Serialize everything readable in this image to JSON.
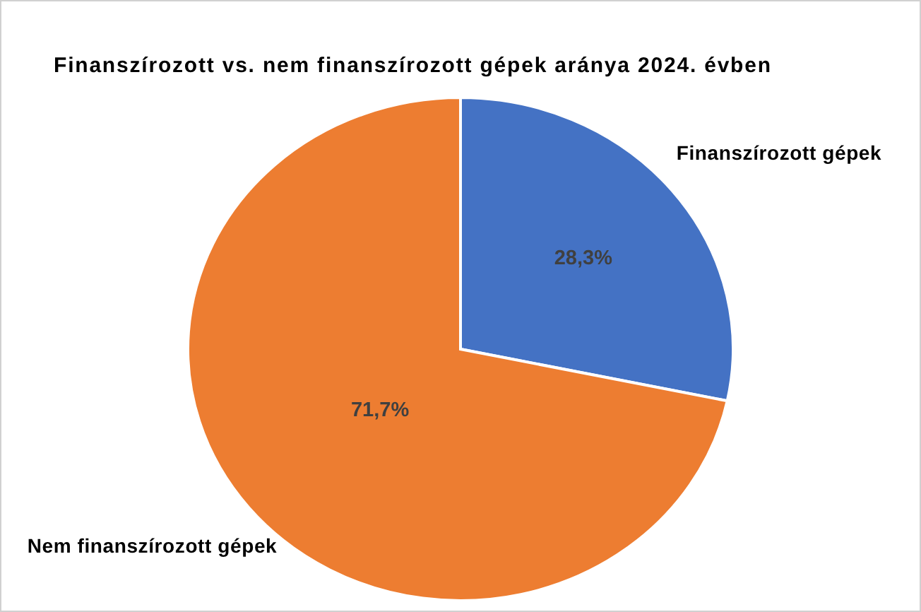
{
  "chart_data": {
    "type": "pie",
    "title": "Finanszírozott vs. nem finanszírozott gépek aránya 2024. évben",
    "categories": [
      "Finanszírozott gépek",
      "Nem finanszírozott gépek"
    ],
    "values": [
      28.3,
      71.7
    ],
    "colors": [
      "#4472c4",
      "#ed7d31"
    ],
    "value_labels": [
      "28,3%",
      "71,7%"
    ]
  }
}
